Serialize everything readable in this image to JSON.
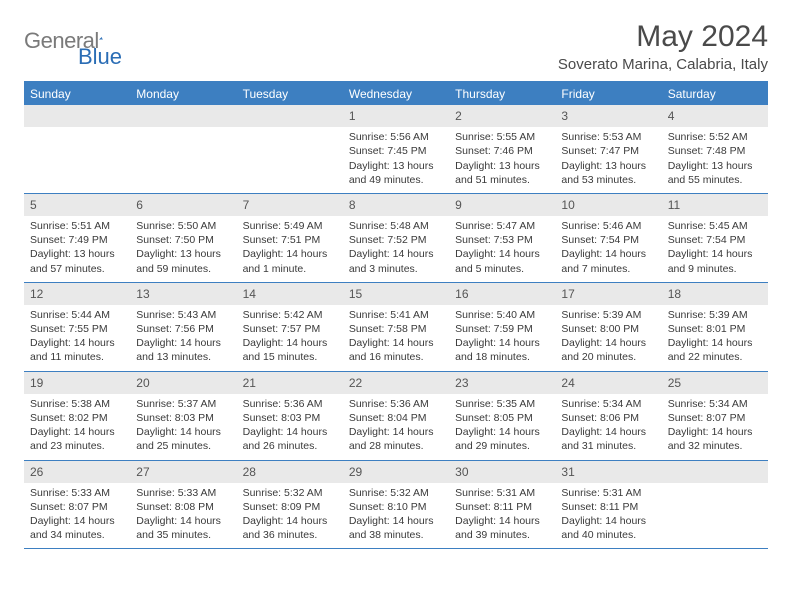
{
  "logo": {
    "general": "General",
    "blue": "Blue"
  },
  "title": "May 2024",
  "location": "Soverato Marina, Calabria, Italy",
  "day_names": [
    "Sunday",
    "Monday",
    "Tuesday",
    "Wednesday",
    "Thursday",
    "Friday",
    "Saturday"
  ],
  "colors": {
    "header_bg": "#3d7fc1",
    "border": "#3d7fc1",
    "daynum_bg": "#e9e9e9",
    "text": "#3a3a3a",
    "logo_gray": "#7a7a7a",
    "logo_blue": "#2a6db5"
  },
  "weeks": [
    [
      {
        "empty": true
      },
      {
        "empty": true
      },
      {
        "empty": true
      },
      {
        "day": "1",
        "sunrise": "Sunrise: 5:56 AM",
        "sunset": "Sunset: 7:45 PM",
        "daylight1": "Daylight: 13 hours",
        "daylight2": "and 49 minutes."
      },
      {
        "day": "2",
        "sunrise": "Sunrise: 5:55 AM",
        "sunset": "Sunset: 7:46 PM",
        "daylight1": "Daylight: 13 hours",
        "daylight2": "and 51 minutes."
      },
      {
        "day": "3",
        "sunrise": "Sunrise: 5:53 AM",
        "sunset": "Sunset: 7:47 PM",
        "daylight1": "Daylight: 13 hours",
        "daylight2": "and 53 minutes."
      },
      {
        "day": "4",
        "sunrise": "Sunrise: 5:52 AM",
        "sunset": "Sunset: 7:48 PM",
        "daylight1": "Daylight: 13 hours",
        "daylight2": "and 55 minutes."
      }
    ],
    [
      {
        "day": "5",
        "sunrise": "Sunrise: 5:51 AM",
        "sunset": "Sunset: 7:49 PM",
        "daylight1": "Daylight: 13 hours",
        "daylight2": "and 57 minutes."
      },
      {
        "day": "6",
        "sunrise": "Sunrise: 5:50 AM",
        "sunset": "Sunset: 7:50 PM",
        "daylight1": "Daylight: 13 hours",
        "daylight2": "and 59 minutes."
      },
      {
        "day": "7",
        "sunrise": "Sunrise: 5:49 AM",
        "sunset": "Sunset: 7:51 PM",
        "daylight1": "Daylight: 14 hours",
        "daylight2": "and 1 minute."
      },
      {
        "day": "8",
        "sunrise": "Sunrise: 5:48 AM",
        "sunset": "Sunset: 7:52 PM",
        "daylight1": "Daylight: 14 hours",
        "daylight2": "and 3 minutes."
      },
      {
        "day": "9",
        "sunrise": "Sunrise: 5:47 AM",
        "sunset": "Sunset: 7:53 PM",
        "daylight1": "Daylight: 14 hours",
        "daylight2": "and 5 minutes."
      },
      {
        "day": "10",
        "sunrise": "Sunrise: 5:46 AM",
        "sunset": "Sunset: 7:54 PM",
        "daylight1": "Daylight: 14 hours",
        "daylight2": "and 7 minutes."
      },
      {
        "day": "11",
        "sunrise": "Sunrise: 5:45 AM",
        "sunset": "Sunset: 7:54 PM",
        "daylight1": "Daylight: 14 hours",
        "daylight2": "and 9 minutes."
      }
    ],
    [
      {
        "day": "12",
        "sunrise": "Sunrise: 5:44 AM",
        "sunset": "Sunset: 7:55 PM",
        "daylight1": "Daylight: 14 hours",
        "daylight2": "and 11 minutes."
      },
      {
        "day": "13",
        "sunrise": "Sunrise: 5:43 AM",
        "sunset": "Sunset: 7:56 PM",
        "daylight1": "Daylight: 14 hours",
        "daylight2": "and 13 minutes."
      },
      {
        "day": "14",
        "sunrise": "Sunrise: 5:42 AM",
        "sunset": "Sunset: 7:57 PM",
        "daylight1": "Daylight: 14 hours",
        "daylight2": "and 15 minutes."
      },
      {
        "day": "15",
        "sunrise": "Sunrise: 5:41 AM",
        "sunset": "Sunset: 7:58 PM",
        "daylight1": "Daylight: 14 hours",
        "daylight2": "and 16 minutes."
      },
      {
        "day": "16",
        "sunrise": "Sunrise: 5:40 AM",
        "sunset": "Sunset: 7:59 PM",
        "daylight1": "Daylight: 14 hours",
        "daylight2": "and 18 minutes."
      },
      {
        "day": "17",
        "sunrise": "Sunrise: 5:39 AM",
        "sunset": "Sunset: 8:00 PM",
        "daylight1": "Daylight: 14 hours",
        "daylight2": "and 20 minutes."
      },
      {
        "day": "18",
        "sunrise": "Sunrise: 5:39 AM",
        "sunset": "Sunset: 8:01 PM",
        "daylight1": "Daylight: 14 hours",
        "daylight2": "and 22 minutes."
      }
    ],
    [
      {
        "day": "19",
        "sunrise": "Sunrise: 5:38 AM",
        "sunset": "Sunset: 8:02 PM",
        "daylight1": "Daylight: 14 hours",
        "daylight2": "and 23 minutes."
      },
      {
        "day": "20",
        "sunrise": "Sunrise: 5:37 AM",
        "sunset": "Sunset: 8:03 PM",
        "daylight1": "Daylight: 14 hours",
        "daylight2": "and 25 minutes."
      },
      {
        "day": "21",
        "sunrise": "Sunrise: 5:36 AM",
        "sunset": "Sunset: 8:03 PM",
        "daylight1": "Daylight: 14 hours",
        "daylight2": "and 26 minutes."
      },
      {
        "day": "22",
        "sunrise": "Sunrise: 5:36 AM",
        "sunset": "Sunset: 8:04 PM",
        "daylight1": "Daylight: 14 hours",
        "daylight2": "and 28 minutes."
      },
      {
        "day": "23",
        "sunrise": "Sunrise: 5:35 AM",
        "sunset": "Sunset: 8:05 PM",
        "daylight1": "Daylight: 14 hours",
        "daylight2": "and 29 minutes."
      },
      {
        "day": "24",
        "sunrise": "Sunrise: 5:34 AM",
        "sunset": "Sunset: 8:06 PM",
        "daylight1": "Daylight: 14 hours",
        "daylight2": "and 31 minutes."
      },
      {
        "day": "25",
        "sunrise": "Sunrise: 5:34 AM",
        "sunset": "Sunset: 8:07 PM",
        "daylight1": "Daylight: 14 hours",
        "daylight2": "and 32 minutes."
      }
    ],
    [
      {
        "day": "26",
        "sunrise": "Sunrise: 5:33 AM",
        "sunset": "Sunset: 8:07 PM",
        "daylight1": "Daylight: 14 hours",
        "daylight2": "and 34 minutes."
      },
      {
        "day": "27",
        "sunrise": "Sunrise: 5:33 AM",
        "sunset": "Sunset: 8:08 PM",
        "daylight1": "Daylight: 14 hours",
        "daylight2": "and 35 minutes."
      },
      {
        "day": "28",
        "sunrise": "Sunrise: 5:32 AM",
        "sunset": "Sunset: 8:09 PM",
        "daylight1": "Daylight: 14 hours",
        "daylight2": "and 36 minutes."
      },
      {
        "day": "29",
        "sunrise": "Sunrise: 5:32 AM",
        "sunset": "Sunset: 8:10 PM",
        "daylight1": "Daylight: 14 hours",
        "daylight2": "and 38 minutes."
      },
      {
        "day": "30",
        "sunrise": "Sunrise: 5:31 AM",
        "sunset": "Sunset: 8:11 PM",
        "daylight1": "Daylight: 14 hours",
        "daylight2": "and 39 minutes."
      },
      {
        "day": "31",
        "sunrise": "Sunrise: 5:31 AM",
        "sunset": "Sunset: 8:11 PM",
        "daylight1": "Daylight: 14 hours",
        "daylight2": "and 40 minutes."
      },
      {
        "empty": true
      }
    ]
  ]
}
